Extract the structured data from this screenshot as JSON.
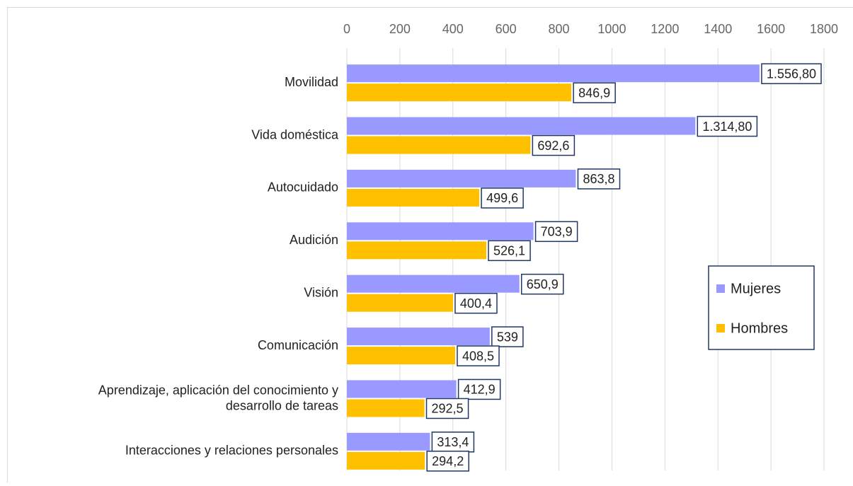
{
  "chart_data": {
    "type": "bar",
    "orientation": "horizontal",
    "categories": [
      "Movilidad",
      "Vida doméstica",
      "Autocuidado",
      "Audición",
      "Visión",
      "Comunicación",
      "Aprendizaje, aplicación del conocimiento y desarrollo de tareas",
      "Interacciones y relaciones personales"
    ],
    "series": [
      {
        "name": "Mujeres",
        "color": "#9999ff",
        "values": [
          1556.8,
          1314.8,
          863.8,
          703.9,
          650.9,
          539,
          412.9,
          313.4
        ],
        "value_labels": [
          "1.556,80",
          "1.314,80",
          "863,8",
          "703,9",
          "650,9",
          "539",
          "412,9",
          "313,4"
        ]
      },
      {
        "name": "Hombres",
        "color": "#ffc000",
        "values": [
          846.9,
          692.6,
          499.6,
          526.1,
          400.4,
          408.5,
          292.5,
          294.2
        ],
        "value_labels": [
          "846,9",
          "692,6",
          "499,6",
          "526,1",
          "400,4",
          "408,5",
          "292,5",
          "294,2"
        ]
      }
    ],
    "xlim": [
      0,
      1800
    ],
    "xticks": [
      0,
      200,
      400,
      600,
      800,
      1000,
      1200,
      1400,
      1600,
      1800
    ],
    "grid": true,
    "legend": "right"
  }
}
